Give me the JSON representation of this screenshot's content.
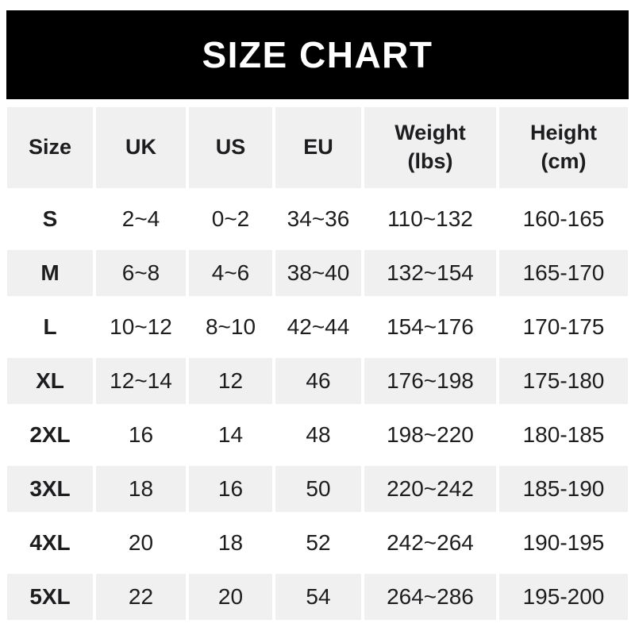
{
  "banner": {
    "title": "SIZE CHART"
  },
  "colors": {
    "banner_bg": "#000000",
    "banner_text": "#ffffff",
    "cell_bg_gray": "#f0f0f1",
    "cell_bg_white": "#ffffff",
    "text": "#1d1d1f",
    "page_bg": "#ffffff"
  },
  "chart_data": {
    "type": "table",
    "title": "SIZE CHART",
    "columns": [
      {
        "label": "Size",
        "sub": ""
      },
      {
        "label": "UK",
        "sub": ""
      },
      {
        "label": "US",
        "sub": ""
      },
      {
        "label": "EU",
        "sub": ""
      },
      {
        "label": "Weight",
        "sub": "(lbs)"
      },
      {
        "label": "Height",
        "sub": "(cm)"
      }
    ],
    "rows": [
      {
        "size": "S",
        "uk": "2~4",
        "us": "0~2",
        "eu": "34~36",
        "weight_lbs": "110~132",
        "height_cm": "160-165"
      },
      {
        "size": "M",
        "uk": "6~8",
        "us": "4~6",
        "eu": "38~40",
        "weight_lbs": "132~154",
        "height_cm": "165-170"
      },
      {
        "size": "L",
        "uk": "10~12",
        "us": "8~10",
        "eu": "42~44",
        "weight_lbs": "154~176",
        "height_cm": "170-175"
      },
      {
        "size": "XL",
        "uk": "12~14",
        "us": "12",
        "eu": "46",
        "weight_lbs": "176~198",
        "height_cm": "175-180"
      },
      {
        "size": "2XL",
        "uk": "16",
        "us": "14",
        "eu": "48",
        "weight_lbs": "198~220",
        "height_cm": "180-185"
      },
      {
        "size": "3XL",
        "uk": "18",
        "us": "16",
        "eu": "50",
        "weight_lbs": "220~242",
        "height_cm": "185-190"
      },
      {
        "size": "4XL",
        "uk": "20",
        "us": "18",
        "eu": "52",
        "weight_lbs": "242~264",
        "height_cm": "190-195"
      },
      {
        "size": "5XL",
        "uk": "22",
        "us": "20",
        "eu": "54",
        "weight_lbs": "264~286",
        "height_cm": "195-200"
      }
    ]
  }
}
